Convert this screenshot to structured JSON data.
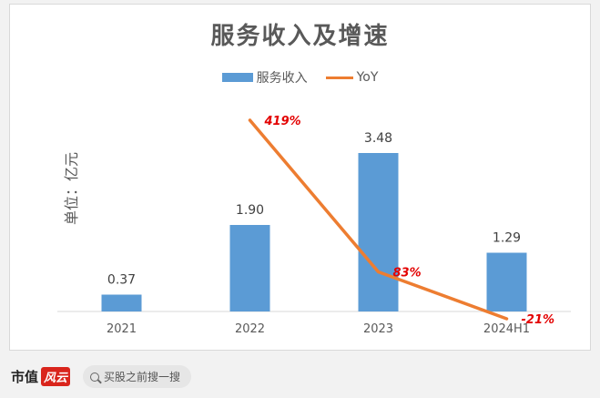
{
  "chart_data": {
    "type": "bar",
    "title": "服务收入及增速",
    "unit_label": "单位：亿元",
    "categories": [
      "2021",
      "2022",
      "2023",
      "2024H1"
    ],
    "series": [
      {
        "name": "服务收入",
        "type": "bar",
        "color": "#5b9bd5",
        "values": [
          0.37,
          1.9,
          3.48,
          1.29
        ],
        "labels": [
          "0.37",
          "1.90",
          "3.48",
          "1.29"
        ]
      },
      {
        "name": "YoY",
        "type": "line",
        "color": "#ed7d31",
        "values": [
          null,
          419,
          83,
          -21
        ],
        "labels": [
          "",
          "419%",
          "83%",
          "-21%"
        ]
      }
    ],
    "yoy_label_color": "#e30000",
    "legend_position": "top",
    "grid": false
  },
  "footer": {
    "logo_text": "市值",
    "logo_badge": "风云",
    "search_text": "买股之前搜一搜"
  }
}
